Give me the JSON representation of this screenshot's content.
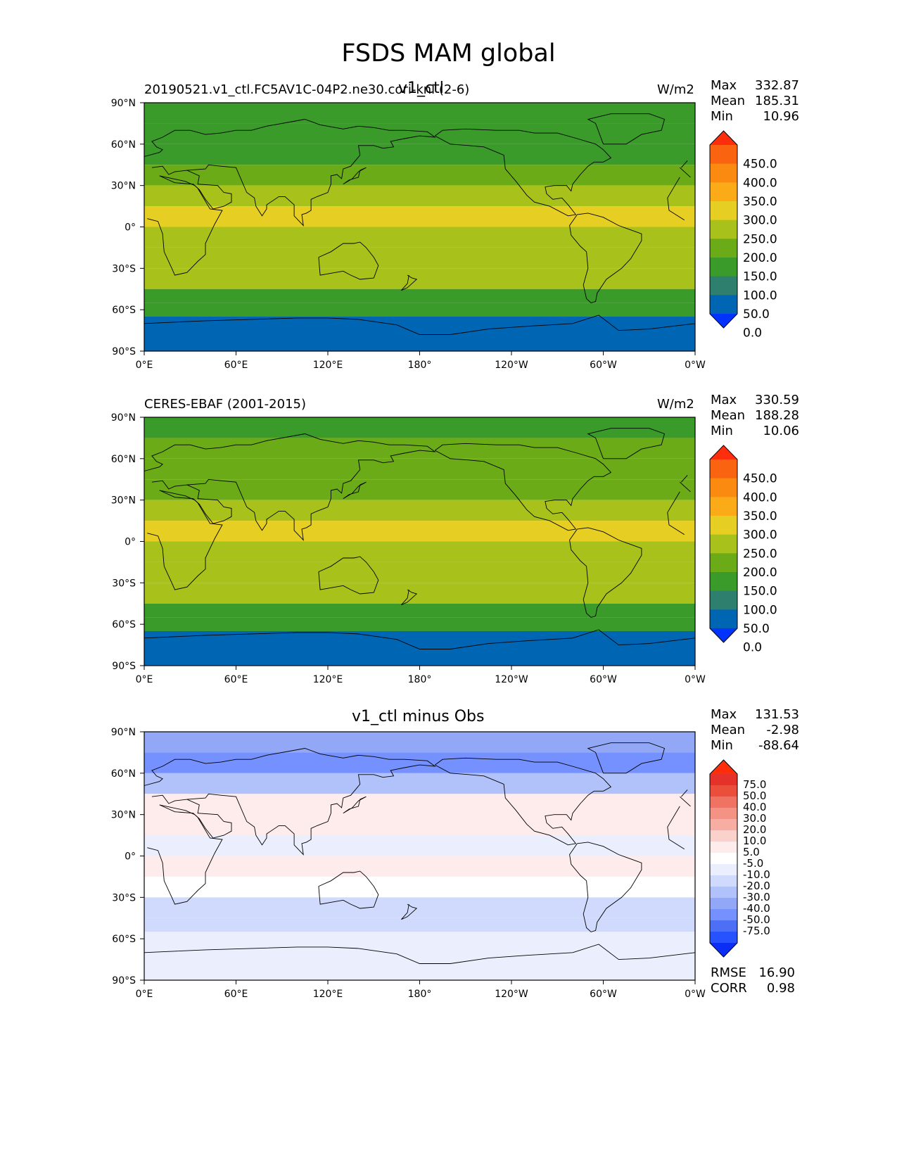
{
  "title": "FSDS MAM global",
  "colors": {
    "abs_levels": [
      "#0033ff",
      "#0066b4",
      "#2e7f6e",
      "#3a9a2a",
      "#6aab17",
      "#a9c21b",
      "#e6cf22",
      "#fbaa18",
      "#fb8b10",
      "#fa6410",
      "#fe2d0b"
    ],
    "diff_levels": [
      "#0a2ef5",
      "#2652ff",
      "#4d6ff5",
      "#7590ff",
      "#93a7f7",
      "#b1c2fa",
      "#cfdafc",
      "#ebeffd",
      "#ffffff",
      "#fdeceb",
      "#fbd1cb",
      "#f8ada2",
      "#f49283",
      "#f07263",
      "#ec4e3c",
      "#e4322b",
      "#ff2d0a"
    ],
    "coastline": "#000000"
  },
  "panels": [
    {
      "left_title": "20190521.v1_ctl.FC5AV1C-04P2.ne30.cori-knl (2-6)",
      "center_title": "v1_ctl",
      "units": "W/m2",
      "stats": [
        {
          "label": "Max",
          "value": "332.87"
        },
        {
          "label": "Mean",
          "value": "185.31"
        },
        {
          "label": "Min",
          "value": "10.96"
        }
      ],
      "colorbar_labels": [
        "450.0",
        "400.0",
        "350.0",
        "300.0",
        "250.0",
        "200.0",
        "150.0",
        "100.0",
        "50.0",
        "0.0"
      ]
    },
    {
      "left_title": "CERES-EBAF (2001-2015)",
      "center_title": "",
      "units": "W/m2",
      "stats": [
        {
          "label": "Max",
          "value": "330.59"
        },
        {
          "label": "Mean",
          "value": "188.28"
        },
        {
          "label": "Min",
          "value": "10.06"
        }
      ],
      "colorbar_labels": [
        "450.0",
        "400.0",
        "350.0",
        "300.0",
        "250.0",
        "200.0",
        "150.0",
        "100.0",
        "50.0",
        "0.0"
      ]
    },
    {
      "left_title": "",
      "center_title": "v1_ctl minus Obs",
      "units": "",
      "stats": [
        {
          "label": "Max",
          "value": "131.53"
        },
        {
          "label": "Mean",
          "value": "-2.98"
        },
        {
          "label": "Min",
          "value": "-88.64"
        }
      ],
      "colorbar_labels": [
        "75.0",
        "50.0",
        "40.0",
        "30.0",
        "20.0",
        "10.0",
        "5.0",
        "-5.0",
        "-10.0",
        "-20.0",
        "-30.0",
        "-40.0",
        "-50.0",
        "-75.0"
      ],
      "bottom_stats": [
        {
          "label": "RMSE",
          "value": "16.90"
        },
        {
          "label": "CORR",
          "value": "0.98"
        }
      ]
    }
  ],
  "axes": {
    "lat_ticks": [
      "90°N",
      "60°N",
      "30°N",
      "0°",
      "30°S",
      "60°S",
      "90°S"
    ],
    "lon_ticks": [
      "0°E",
      "60°E",
      "120°E",
      "180°",
      "120°W",
      "60°W",
      "0°W"
    ]
  },
  "chart_data": [
    {
      "type": "heatmap",
      "title": "v1_ctl",
      "subtitle": "20190521.v1_ctl.FC5AV1C-04P2.ne30.cori-knl (2-6)",
      "units": "W/m2",
      "xlim": [
        0,
        360
      ],
      "ylim": [
        -90,
        90
      ],
      "x_ticks": [
        "0°E",
        "60°E",
        "120°E",
        "180°",
        "120°W",
        "60°W",
        "0°W"
      ],
      "y_ticks": [
        "90°N",
        "60°N",
        "30°N",
        "0°",
        "30°S",
        "60°S",
        "90°S"
      ],
      "levels": [
        0,
        50,
        100,
        150,
        200,
        250,
        300,
        350,
        400,
        450
      ],
      "zonal_lat_bands": [
        90,
        75,
        60,
        45,
        30,
        15,
        0,
        -15,
        -30,
        -45,
        -55,
        -65,
        -90
      ],
      "zonal_mean_values": [
        120,
        105,
        140,
        175,
        240,
        270,
        240,
        225,
        200,
        140,
        100,
        30
      ],
      "max": 332.87,
      "mean": 185.31,
      "min": 10.96
    },
    {
      "type": "heatmap",
      "subtitle": "CERES-EBAF (2001-2015)",
      "units": "W/m2",
      "xlim": [
        0,
        360
      ],
      "ylim": [
        -90,
        90
      ],
      "levels": [
        0,
        50,
        100,
        150,
        200,
        250,
        300,
        350,
        400,
        450
      ],
      "zonal_lat_bands": [
        90,
        75,
        60,
        45,
        30,
        15,
        0,
        -15,
        -30,
        -45,
        -55,
        -65,
        -90
      ],
      "zonal_mean_values": [
        125,
        160,
        170,
        190,
        240,
        260,
        230,
        225,
        200,
        145,
        100,
        30
      ],
      "max": 330.59,
      "mean": 188.28,
      "min": 10.06
    },
    {
      "type": "heatmap",
      "title": "v1_ctl minus Obs",
      "xlim": [
        0,
        360
      ],
      "ylim": [
        -90,
        90
      ],
      "levels": [
        -75,
        -50,
        -40,
        -30,
        -20,
        -10,
        -5,
        5,
        10,
        20,
        30,
        40,
        50,
        75
      ],
      "zonal_lat_bands": [
        90,
        75,
        60,
        45,
        30,
        15,
        0,
        -15,
        -30,
        -45,
        -55,
        -65,
        -90
      ],
      "zonal_mean_values": [
        -25,
        -35,
        -20,
        10,
        15,
        -5,
        10,
        5,
        -10,
        -10,
        -3,
        0
      ],
      "max": 131.53,
      "mean": -2.98,
      "min": -88.64,
      "rmse": 16.9,
      "corr": 0.98
    }
  ]
}
